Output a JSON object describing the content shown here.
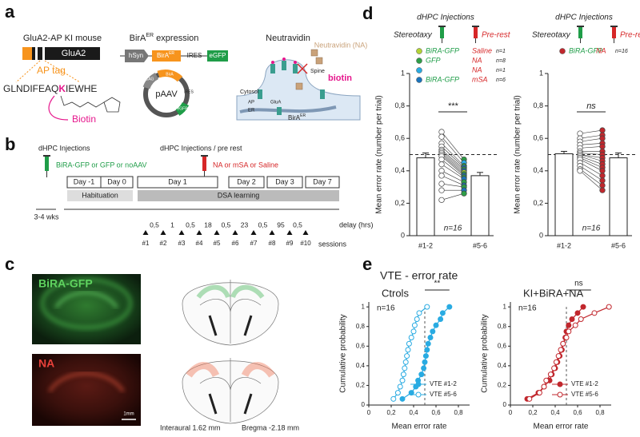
{
  "panel_a": {
    "label": "a",
    "mouse_title": "GluA2-AP KI mouse",
    "gene": "GluA2",
    "ap_tag": "AP tag",
    "sequence_start": "GLNDIFEAQ",
    "sequence_lysine": "K",
    "sequence_end": "IEWHE",
    "biotin": "Biotin",
    "bira_title": "BirA",
    "bira_title_sup": "ER",
    "bira_title_rest": " expression",
    "promoter": "hSyn",
    "bira_box": "BirA",
    "bira_box_sup": "ER",
    "ires": "IRES",
    "egfp": "eGFP",
    "plasmid": "pAAV",
    "cag": "CAG",
    "neutravidin_title": "Neutravidin",
    "neutravidin_label": "Neutravidin (NA)",
    "biotin_label": "biotin",
    "spine": "Spine",
    "cytosol": "Cytosol",
    "glua": "GluA",
    "ap": "AP",
    "er": "ER",
    "bira_er": "BirA",
    "bira_er_sup": "ER"
  },
  "panel_b": {
    "label": "b",
    "injection1": "dHPC Injections",
    "injection1_detail": "BiRA-GFP or GFP or noAAV",
    "injection2": "dHPC Injections / pre rest",
    "injection2_detail": "NA or mSA or Saline",
    "days": [
      "Day -1",
      "Day 0",
      "Day 1",
      "Day 2",
      "Day 3",
      "Day 7"
    ],
    "habituation": "Habituation",
    "learning": "DSA learning",
    "interval": "3-4 wks",
    "delays": [
      "0,5",
      "1",
      "0,5",
      "18",
      "0,5",
      "23",
      "0,5",
      "95",
      "0,5"
    ],
    "delay_label": "delay (hrs)",
    "sessions": [
      "#1",
      "#2",
      "#3",
      "#4",
      "#5",
      "#6",
      "#7",
      "#8",
      "#9",
      "#10"
    ],
    "sessions_label": "sessions"
  },
  "panel_c": {
    "label": "c",
    "green_label": "BiRA-GFP",
    "red_label": "NA",
    "scale_bar": "1mm",
    "interaural": "Interaural 1.62 mm",
    "bregma": "Bregma -2.18 mm"
  },
  "panel_d": {
    "label": "d",
    "charts": [
      {
        "type": "bar",
        "title": "dHPC Injections",
        "left_note": "Stereotaxy",
        "right_note": "Pre-rest",
        "legend": [
          {
            "name": "BiRA-GFP",
            "condition": "Saline",
            "n": "n=1",
            "color": "#b3d335"
          },
          {
            "name": "GFP",
            "condition": "NA",
            "n": "n=8",
            "color": "#2e9e47"
          },
          {
            "condition": "NA",
            "n": "n=1",
            "color": "#29abe2"
          },
          {
            "name": "BiRA-GFP",
            "condition": "mSA",
            "n": "n=6",
            "color": "#1b75bc"
          }
        ],
        "categories": [
          "#1-2",
          "#5-6"
        ],
        "values": [
          0.48,
          0.37
        ],
        "errors": [
          0.03,
          0.02
        ],
        "subjects": [
          {
            "values": [
              0.64,
              0.47
            ],
            "color": "#2e9e47"
          },
          {
            "values": [
              0.61,
              0.45
            ],
            "color": "#29abe2"
          },
          {
            "values": [
              0.57,
              0.43
            ],
            "color": "#2e9e47"
          },
          {
            "values": [
              0.55,
              0.42
            ],
            "color": "#1b75bc"
          },
          {
            "values": [
              0.53,
              0.41
            ],
            "color": "#2e9e47"
          },
          {
            "values": [
              0.52,
              0.4
            ],
            "color": "#1b75bc"
          },
          {
            "values": [
              0.51,
              0.39
            ],
            "color": "#b3d335"
          },
          {
            "values": [
              0.5,
              0.38
            ],
            "color": "#2e9e47"
          },
          {
            "values": [
              0.49,
              0.37
            ],
            "color": "#1b75bc"
          },
          {
            "values": [
              0.47,
              0.36
            ],
            "color": "#2e9e47"
          },
          {
            "values": [
              0.44,
              0.35
            ],
            "color": "#1b75bc"
          },
          {
            "values": [
              0.4,
              0.33
            ],
            "color": "#2e9e47"
          },
          {
            "values": [
              0.37,
              0.31
            ],
            "color": "#1b75bc"
          },
          {
            "values": [
              0.32,
              0.3
            ],
            "color": "#2e9e47"
          },
          {
            "values": [
              0.28,
              0.28
            ],
            "color": "#1b75bc"
          },
          {
            "values": [
              0.22,
              0.26
            ],
            "color": "#2e9e47"
          }
        ],
        "ylabel": "Mean error rate (number per trial)",
        "ylim": [
          0,
          1
        ],
        "yticks": [
          0,
          {
            "value": 0.2,
            "label": "0,2"
          },
          {
            "value": 0.4,
            "label": "0,4"
          },
          {
            "value": 0.6,
            "label": "0,6"
          },
          {
            "value": 0.8,
            "label": "0,8"
          },
          1
        ],
        "reference_line": 0.5,
        "significance": "***",
        "n_label": "n=16"
      },
      {
        "type": "bar",
        "title": "dHPC Injections",
        "left_note": "Stereotaxy",
        "right_note": "Pre-rest",
        "legend": [
          {
            "name": "BiRA-GFP",
            "condition": "NA",
            "n": "n=16",
            "color": "#c1272d"
          }
        ],
        "categories": [
          "#1-2",
          "#5-6"
        ],
        "values": [
          0.505,
          0.48
        ],
        "errors": [
          0.015,
          0.03
        ],
        "subjects": [
          {
            "values": [
              0.63,
              0.65
            ],
            "color": "#c1272d"
          },
          {
            "values": [
              0.6,
              0.62
            ],
            "color": "#c1272d"
          },
          {
            "values": [
              0.58,
              0.6
            ],
            "color": "#c1272d"
          },
          {
            "values": [
              0.56,
              0.57
            ],
            "color": "#c1272d"
          },
          {
            "values": [
              0.54,
              0.55
            ],
            "color": "#c1272d"
          },
          {
            "values": [
              0.52,
              0.52
            ],
            "color": "#c1272d"
          },
          {
            "values": [
              0.51,
              0.5
            ],
            "color": "#c1272d"
          },
          {
            "values": [
              0.5,
              0.48
            ],
            "color": "#c1272d"
          },
          {
            "values": [
              0.5,
              0.46
            ],
            "color": "#c1272d"
          },
          {
            "values": [
              0.49,
              0.44
            ],
            "color": "#c1272d"
          },
          {
            "values": [
              0.48,
              0.42
            ],
            "color": "#c1272d"
          },
          {
            "values": [
              0.47,
              0.4
            ],
            "color": "#c1272d"
          },
          {
            "values": [
              0.45,
              0.37
            ],
            "color": "#c1272d"
          },
          {
            "values": [
              0.43,
              0.34
            ],
            "color": "#c1272d"
          },
          {
            "values": [
              0.41,
              0.31
            ],
            "color": "#c1272d"
          },
          {
            "values": [
              0.4,
              0.28
            ],
            "color": "#c1272d"
          }
        ],
        "ylabel": "Mean error rate (number per trial)",
        "ylim": [
          0,
          1
        ],
        "yticks": [
          0,
          {
            "value": 0.2,
            "label": "0,2"
          },
          {
            "value": 0.4,
            "label": "0,4"
          },
          {
            "value": 0.6,
            "label": "0,6"
          },
          {
            "value": 0.8,
            "label": "0,8"
          },
          1
        ],
        "reference_line": 0.5,
        "significance": "ns",
        "n_label": "n=16"
      }
    ]
  },
  "panel_e": {
    "label": "e",
    "title": "VTE - error rate",
    "charts": [
      {
        "type": "line",
        "title": "Ctrols",
        "n_label": "n=16",
        "significance": "**",
        "xlabel": "Mean error rate",
        "ylabel": "Cumulative probability",
        "xlim": [
          0,
          0.9
        ],
        "ylim": [
          0,
          1.05
        ],
        "xticks": [
          0,
          {
            "value": 0.2,
            "label": "0,2"
          },
          {
            "value": 0.4,
            "label": "0,4"
          },
          {
            "value": 0.6,
            "label": "0,6"
          },
          {
            "value": 0.8,
            "label": "0,8"
          }
        ],
        "yticks": [
          0,
          {
            "value": 0.2,
            "label": "0,2"
          },
          {
            "value": 0.4,
            "label": "0,4"
          },
          {
            "value": 0.6,
            "label": "0,6"
          },
          {
            "value": 0.8,
            "label": "0,8"
          },
          1
        ],
        "reference_line": 0.5,
        "series": [
          {
            "name": "VTE #1-2",
            "color": "#29abe2",
            "filled": true,
            "x": [
              0.3,
              0.38,
              0.42,
              0.44,
              0.47,
              0.49,
              0.5,
              0.51,
              0.52,
              0.53,
              0.55,
              0.57,
              0.6,
              0.64,
              0.66,
              0.72
            ],
            "values": [
              0.0625,
              0.125,
              0.1875,
              0.25,
              0.3125,
              0.375,
              0.4375,
              0.5,
              0.5625,
              0.625,
              0.6875,
              0.75,
              0.8125,
              0.875,
              0.9375,
              1
            ]
          },
          {
            "name": "VTE #5-6",
            "color": "#29abe2",
            "filled": false,
            "x": [
              0.22,
              0.26,
              0.28,
              0.3,
              0.31,
              0.32,
              0.33,
              0.34,
              0.35,
              0.36,
              0.38,
              0.4,
              0.41,
              0.43,
              0.45,
              0.52
            ],
            "values": [
              0.0625,
              0.125,
              0.1875,
              0.25,
              0.3125,
              0.375,
              0.4375,
              0.5,
              0.5625,
              0.625,
              0.6875,
              0.75,
              0.8125,
              0.875,
              0.9375,
              1
            ]
          }
        ]
      },
      {
        "type": "line",
        "title": "KI+BiRA+NA",
        "n_label": "n=16",
        "significance": "ns",
        "xlabel": "Mean error rate",
        "ylabel": "Cumulative probability",
        "xlim": [
          0,
          0.9
        ],
        "ylim": [
          0,
          1.05
        ],
        "xticks": [
          0,
          {
            "value": 0.2,
            "label": "0,2"
          },
          {
            "value": 0.4,
            "label": "0,4"
          },
          {
            "value": 0.6,
            "label": "0,6"
          },
          {
            "value": 0.8,
            "label": "0,8"
          }
        ],
        "yticks": [
          0,
          {
            "value": 0.2,
            "label": "0,2"
          },
          {
            "value": 0.4,
            "label": "0,4"
          },
          {
            "value": 0.6,
            "label": "0,6"
          },
          {
            "value": 0.8,
            "label": "0,8"
          },
          1
        ],
        "reference_line": 0.5,
        "series": [
          {
            "name": "VTE #1-2",
            "color": "#c1272d",
            "filled": true,
            "x": [
              0.15,
              0.25,
              0.3,
              0.35,
              0.37,
              0.4,
              0.42,
              0.44,
              0.46,
              0.47,
              0.49,
              0.5,
              0.52,
              0.55,
              0.6,
              0.65
            ],
            "values": [
              0.0625,
              0.125,
              0.1875,
              0.25,
              0.3125,
              0.375,
              0.4375,
              0.5,
              0.5625,
              0.625,
              0.6875,
              0.75,
              0.8125,
              0.875,
              0.9375,
              1
            ]
          },
          {
            "name": "VTE #5-6",
            "color": "#c1272d",
            "filled": false,
            "x": [
              0.17,
              0.26,
              0.3,
              0.32,
              0.36,
              0.39,
              0.41,
              0.43,
              0.45,
              0.47,
              0.5,
              0.52,
              0.58,
              0.63,
              0.75,
              0.88
            ],
            "values": [
              0.0625,
              0.125,
              0.1875,
              0.25,
              0.3125,
              0.375,
              0.4375,
              0.5,
              0.5625,
              0.625,
              0.6875,
              0.75,
              0.8125,
              0.875,
              0.9375,
              1
            ]
          }
        ]
      }
    ]
  }
}
